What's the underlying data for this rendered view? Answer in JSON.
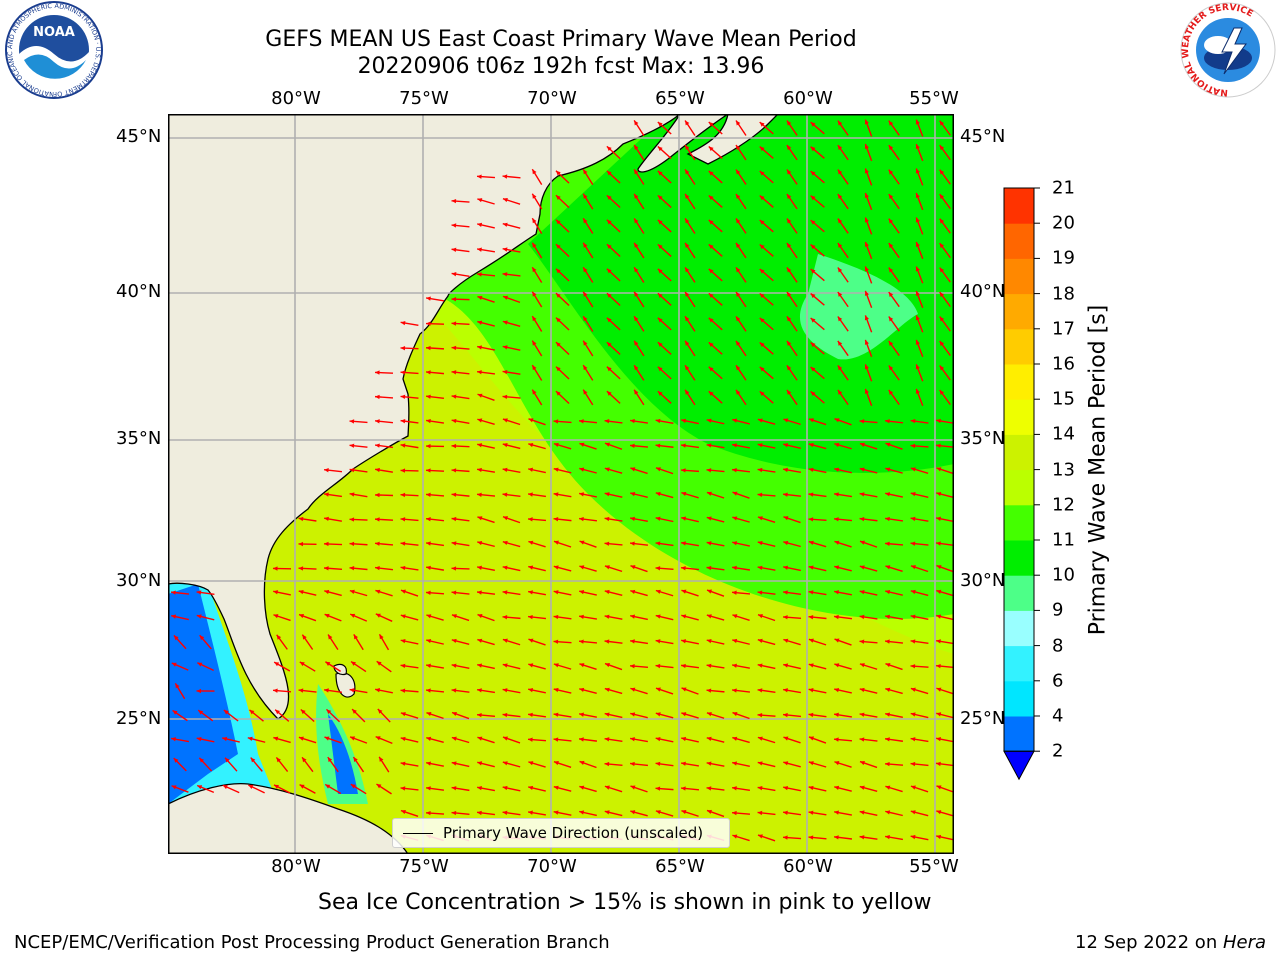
{
  "title": {
    "line1": "GEFS MEAN US East Coast Primary Wave Mean Period",
    "line2": "20220906 t06z 192h fcst   Max: 13.96"
  },
  "logos": {
    "noaa": "NOAA",
    "noaa_ring": "NATIONAL OCEANIC AND ATMOSPHERIC ADMINISTRATION · U.S. DEPARTMENT OF COMMERCE",
    "nws_ring": "NATIONAL WEATHER SERVICE"
  },
  "map": {
    "lon_ticks": [
      "80°W",
      "75°W",
      "70°W",
      "65°W",
      "60°W",
      "55°W"
    ],
    "lat_ticks": [
      "45°N",
      "40°N",
      "35°N",
      "30°N",
      "25°N"
    ],
    "extent": {
      "lon_min": -85,
      "lon_max": -54.5,
      "lat_min": 20,
      "lat_max": 46
    },
    "colors": {
      "land": "#efedde",
      "grid": "#b0b0b0",
      "arrow": "#ff0000",
      "coast": "#000000"
    },
    "legend_label": "Primary Wave Direction (unscaled)"
  },
  "colorbar": {
    "title": "Primary Wave Mean Period [s]",
    "tick_labels": [
      "21",
      "20",
      "19",
      "18",
      "17",
      "16",
      "15",
      "14",
      "13",
      "12",
      "11",
      "10",
      "9",
      "8",
      "6",
      "4",
      "2"
    ],
    "levels": [
      2,
      4,
      6,
      8,
      9,
      10,
      11,
      12,
      13,
      14,
      15,
      16,
      17,
      18,
      19,
      20,
      21
    ],
    "colors": [
      "#0073ff",
      "#00e6ff",
      "#33f2ff",
      "#99ffff",
      "#4dff88",
      "#00ee00",
      "#44ff00",
      "#bbff00",
      "#ccf200",
      "#eeff00",
      "#ffee00",
      "#ffcc00",
      "#ffaa00",
      "#ff8800",
      "#ff6600",
      "#ff3300"
    ],
    "under_color": "#0000ff"
  },
  "note": "Sea Ice Concentration > 15% is shown in pink to yellow",
  "footer": {
    "left": "NCEP/EMC/Verification Post Processing Product Generation Branch",
    "right_date": "12 Sep 2022 on ",
    "right_machine": "Hera"
  }
}
